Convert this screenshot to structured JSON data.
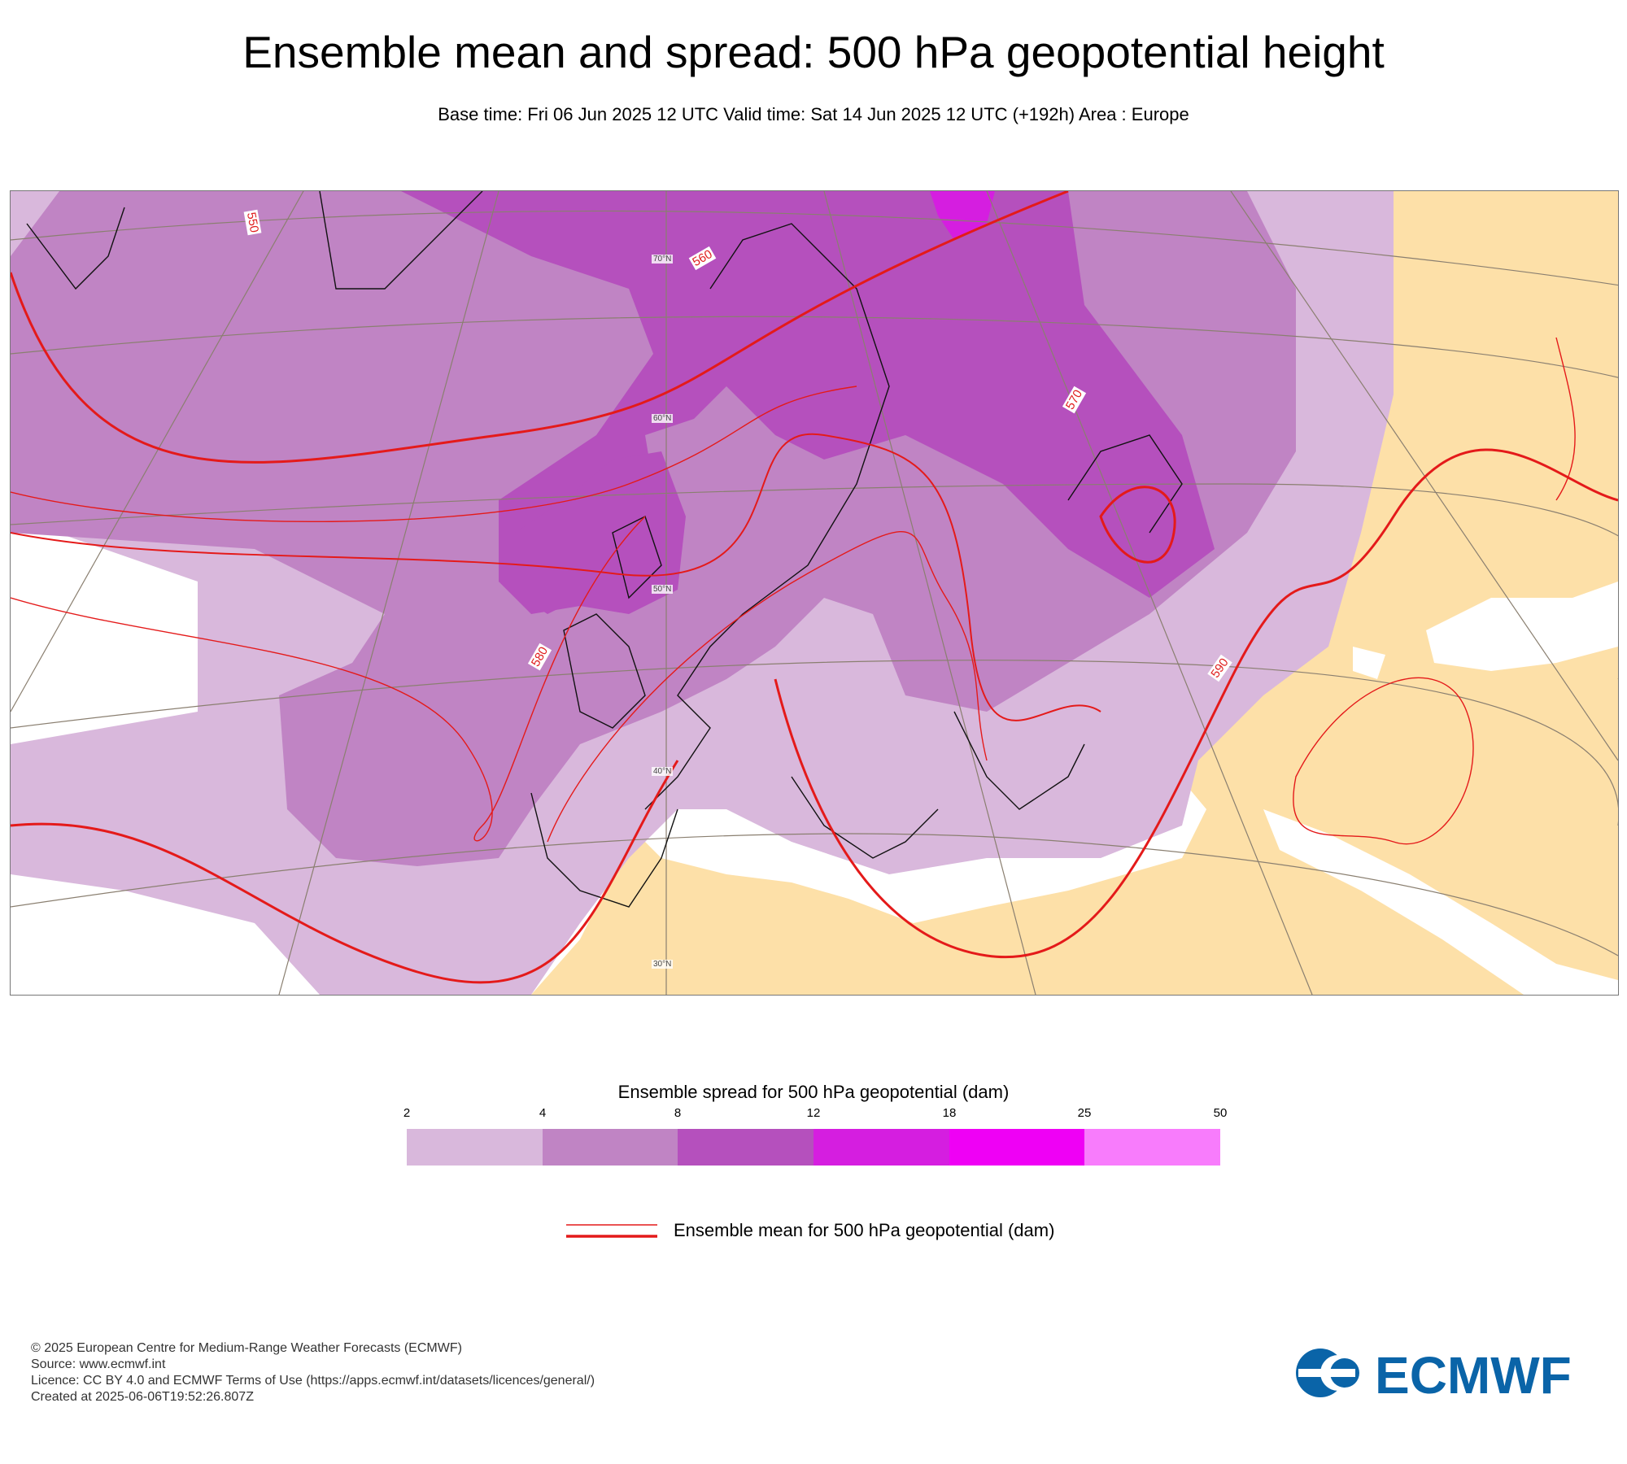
{
  "title": "Ensemble mean and spread: 500 hPa geopotential height",
  "subtitle": "Base time: Fri 06 Jun 2025 12 UTC Valid time: Sat 14 Jun 2025 12 UTC (+192h) Area : Europe",
  "map": {
    "area": "Europe",
    "land_color": "#fde0a8",
    "sea_color": "#ffffff",
    "latitude_labels": [
      "70°N",
      "60°N",
      "50°N",
      "40°N",
      "30°N"
    ],
    "contour_labels": [
      "550",
      "560",
      "570",
      "580",
      "590"
    ]
  },
  "legend": {
    "spread_title": "Ensemble spread for 500 hPa geopotential (dam)",
    "spread_ticks": [
      "2",
      "4",
      "8",
      "12",
      "18",
      "25",
      "50"
    ],
    "spread_colors": [
      "#d9b8dc",
      "#c084c4",
      "#b550bd",
      "#d51ee0",
      "#ef00f5",
      "#f87cfc"
    ],
    "mean_label": "Ensemble mean for 500 hPa geopotential (dam)",
    "mean_color": "#e41a1a"
  },
  "footer": {
    "copyright": "© 2025 European Centre for Medium-Range Weather Forecasts (ECMWF)",
    "source": "Source: www.ecmwf.int",
    "licence": "Licence: CC BY 4.0 and ECMWF Terms of Use (https://apps.ecmwf.int/datasets/licences/general/)",
    "created": "Created at 2025-06-06T19:52:26.807Z"
  },
  "logo": {
    "text": "ECMWF",
    "color": "#0a64a8"
  }
}
